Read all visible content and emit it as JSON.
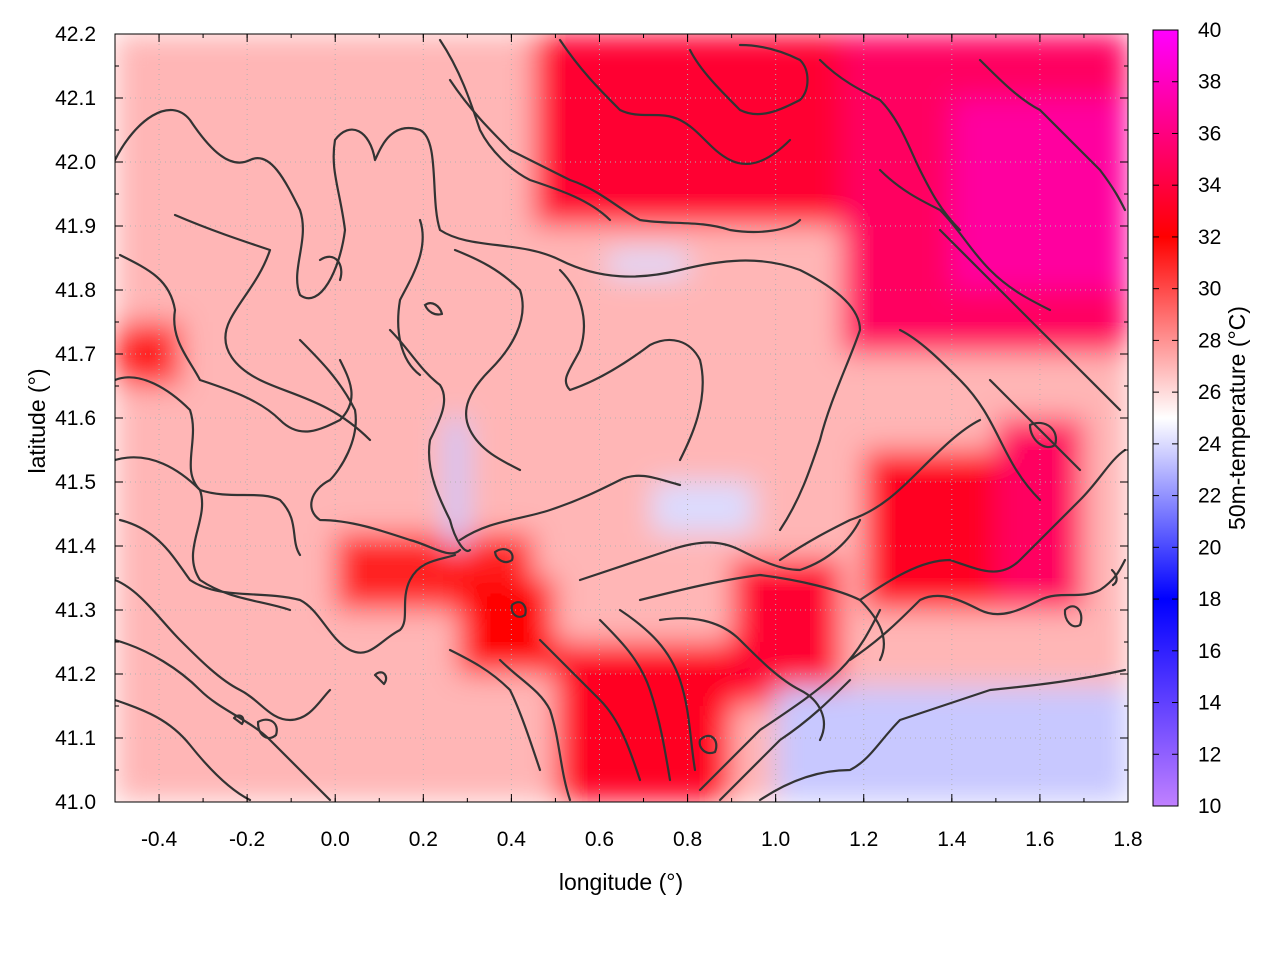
{
  "chart_data": {
    "type": "heatmap",
    "title": "",
    "xlabel": "longitude (°)",
    "ylabel": "latitude (°)",
    "colorbar_label": "50m-temperature (°C)",
    "xlim": [
      -0.5,
      1.8
    ],
    "ylim": [
      41.0,
      42.2
    ],
    "x_ticks": [
      -0.4,
      -0.2,
      0.0,
      0.2,
      0.4,
      0.6,
      0.8,
      1.0,
      1.2,
      1.4,
      1.6,
      1.8
    ],
    "x_tick_labels": [
      "-0.4",
      "-0.2",
      "0.0",
      "0.2",
      "0.4",
      "0.6",
      "0.8",
      "1.0",
      "1.2",
      "1.4",
      "1.6",
      "1.8"
    ],
    "y_ticks": [
      41.0,
      41.1,
      41.2,
      41.3,
      41.4,
      41.5,
      41.6,
      41.7,
      41.8,
      41.9,
      42.0,
      42.1,
      42.2
    ],
    "y_tick_labels": [
      "41.0",
      "41.1",
      "41.2",
      "41.3",
      "41.4",
      "41.5",
      "41.6",
      "41.7",
      "41.8",
      "41.9",
      "42.0",
      "42.1",
      "42.2"
    ],
    "colorbar_range": [
      10,
      40
    ],
    "colorbar_ticks": [
      10,
      12,
      14,
      16,
      18,
      20,
      22,
      24,
      26,
      28,
      30,
      32,
      34,
      36,
      38,
      40
    ],
    "colorbar_tick_labels": [
      "10",
      "12",
      "14",
      "16",
      "18",
      "20",
      "22",
      "24",
      "26",
      "28",
      "30",
      "32",
      "34",
      "36",
      "38",
      "40"
    ],
    "colormap_stops": [
      {
        "value": 10,
        "color": "#c080ff"
      },
      {
        "value": 18,
        "color": "#0000ff"
      },
      {
        "value": 25,
        "color": "#ffffff"
      },
      {
        "value": 32,
        "color": "#ff0000"
      },
      {
        "value": 40,
        "color": "#ff00ff"
      }
    ],
    "grid": true,
    "contour_color": "#333333",
    "field_regions": [
      {
        "x": [
          -0.5,
          1.8
        ],
        "y": [
          41.0,
          42.2
        ],
        "t": 27.0
      },
      {
        "x": [
          0.45,
          1.35
        ],
        "y": [
          41.9,
          42.2
        ],
        "t": 33.5
      },
      {
        "x": [
          1.15,
          1.8
        ],
        "y": [
          41.7,
          42.2
        ],
        "t": 35.0
      },
      {
        "x": [
          1.4,
          1.8
        ],
        "y": [
          41.8,
          42.1
        ],
        "t": 37.0
      },
      {
        "x": [
          1.2,
          1.65
        ],
        "y": [
          41.3,
          41.55
        ],
        "t": 33.0
      },
      {
        "x": [
          1.5,
          1.7
        ],
        "y": [
          41.3,
          41.6
        ],
        "t": 35.0
      },
      {
        "x": [
          0.9,
          1.15
        ],
        "y": [
          41.15,
          41.38
        ],
        "t": 33.5
      },
      {
        "x": [
          0.5,
          0.9
        ],
        "y": [
          41.0,
          41.25
        ],
        "t": 33.0
      },
      {
        "x": [
          0.0,
          0.45
        ],
        "y": [
          41.3,
          41.42
        ],
        "t": 31.0
      },
      {
        "x": [
          0.28,
          0.5
        ],
        "y": [
          41.2,
          41.35
        ],
        "t": 32.0
      },
      {
        "x": [
          -0.5,
          -0.35
        ],
        "y": [
          41.65,
          41.75
        ],
        "t": 31.0
      },
      {
        "x": [
          1.0,
          1.8
        ],
        "y": [
          41.0,
          41.18
        ],
        "t": 23.5
      },
      {
        "x": [
          0.25,
          0.3
        ],
        "y": [
          41.4,
          41.6
        ],
        "t": 23.5
      },
      {
        "x": [
          0.72,
          0.95
        ],
        "y": [
          41.42,
          41.5
        ],
        "t": 24.0
      },
      {
        "x": [
          0.62,
          0.8
        ],
        "y": [
          41.82,
          41.86
        ],
        "t": 24.0
      }
    ]
  }
}
